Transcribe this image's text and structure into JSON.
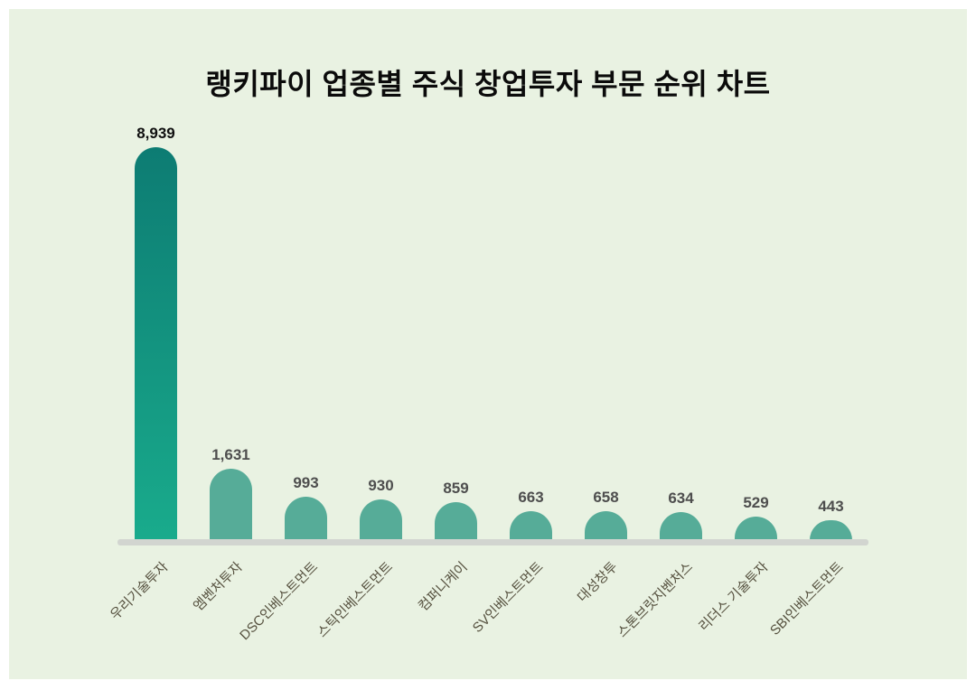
{
  "title": "랭키파이 업종별 주식 창업투자 부문 순위 차트",
  "colors": {
    "page_bg": "#ffffff",
    "panel_bg": "#e9f2e2",
    "bar_primary_gradient_top": "#0d7c73",
    "bar_primary_gradient_bottom": "#19ab8c",
    "bar_secondary": "#56ac98",
    "axis_line": "#d2d5d0",
    "title_text": "#0b0b0b",
    "value_label_primary": "#0f0f0f",
    "value_label_secondary": "#4e4e4e",
    "category_label": "#55503e"
  },
  "chart_data": {
    "type": "bar",
    "title": "랭키파이 업종별 주식 창업투자 부문 순위 차트",
    "orientation": "vertical",
    "categories": [
      "우리기술투자",
      "엠벤처투자",
      "DSC인베스트먼트",
      "스틱인베스트먼트",
      "컴퍼니케이",
      "SV인베스트먼트",
      "대성창투",
      "스톤브릿지벤처스",
      "리더스 기술투자",
      "SBI인베스트먼트"
    ],
    "values": [
      8939,
      1631,
      993,
      930,
      859,
      663,
      658,
      634,
      529,
      443
    ],
    "value_labels": [
      "8,939",
      "1,631",
      "993",
      "930",
      "859",
      "663",
      "658",
      "634",
      "529",
      "443"
    ],
    "xlabel": "",
    "ylabel": "",
    "ylim": [
      0,
      8939
    ],
    "grid": false,
    "legend": false,
    "bar_style": "rounded-top",
    "category_label_rotation_deg": -45,
    "highlight_first_bar": true
  }
}
